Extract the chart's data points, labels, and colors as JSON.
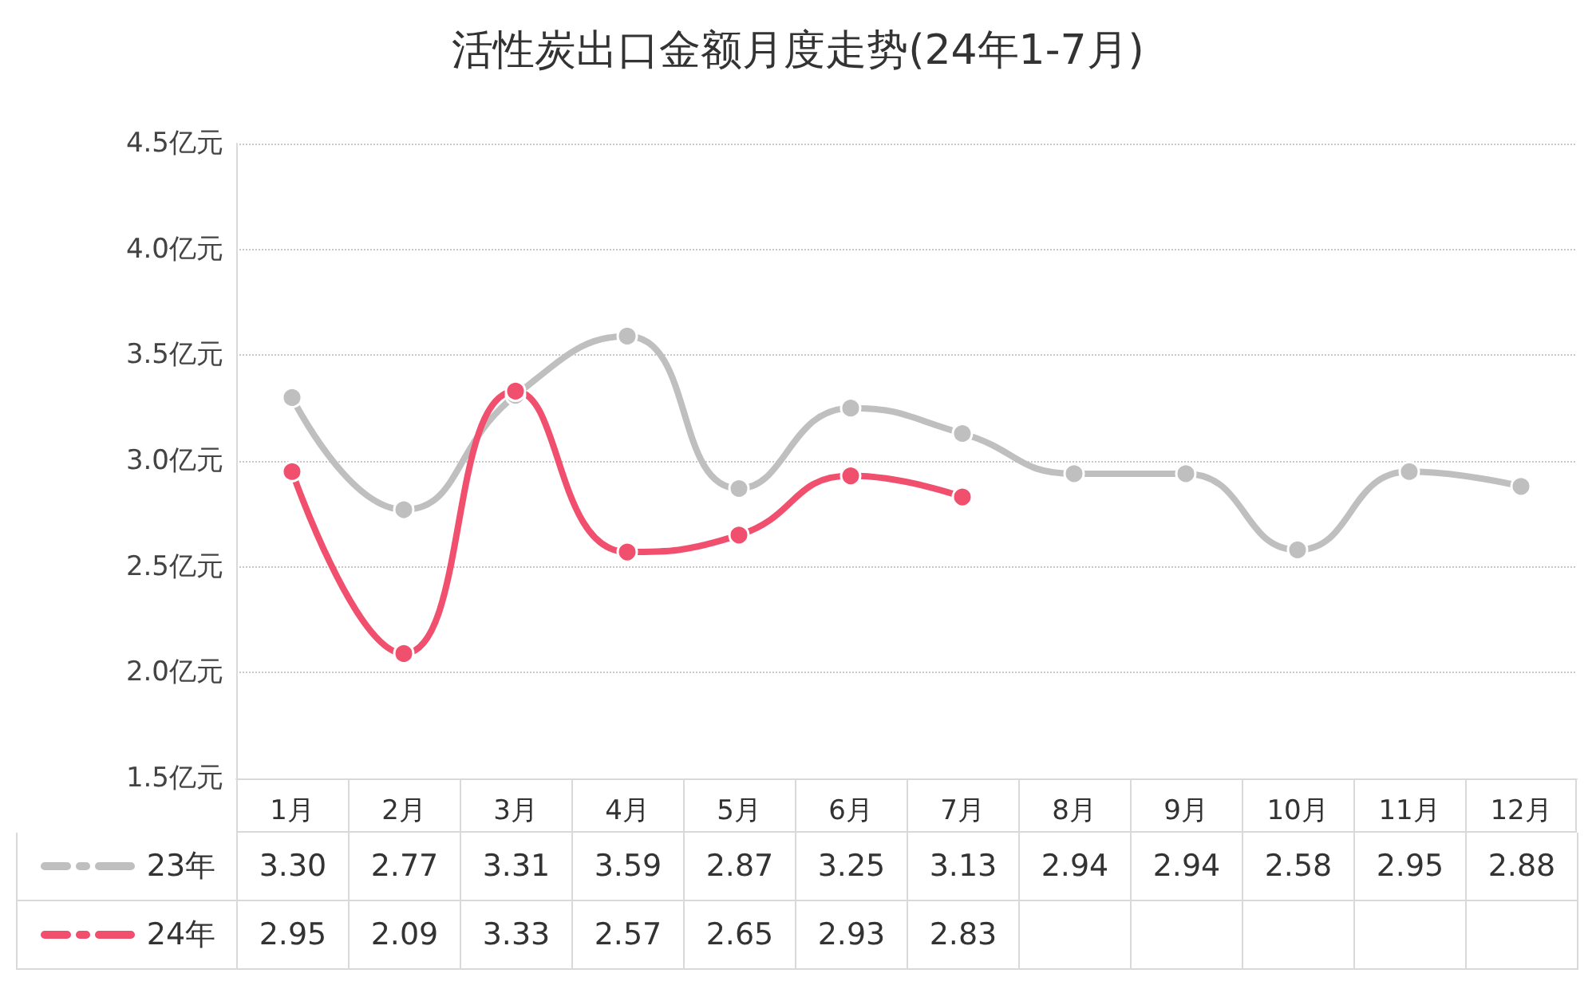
{
  "chart_data": {
    "type": "line",
    "title": "活性炭出口金额月度走势(24年1-7月)",
    "categories": [
      "1月",
      "2月",
      "3月",
      "4月",
      "5月",
      "6月",
      "7月",
      "8月",
      "9月",
      "10月",
      "11月",
      "12月"
    ],
    "series": [
      {
        "name": "23年",
        "color": "#bfbfbf",
        "values": [
          3.3,
          2.77,
          3.31,
          3.59,
          2.87,
          3.25,
          3.13,
          2.94,
          2.94,
          2.58,
          2.95,
          2.88
        ],
        "value_labels": [
          "3.30",
          "2.77",
          "3.31",
          "3.59",
          "2.87",
          "3.25",
          "3.13",
          "2.94",
          "2.94",
          "2.58",
          "2.95",
          "2.88"
        ]
      },
      {
        "name": "24年",
        "color": "#f0506e",
        "values": [
          2.95,
          2.09,
          3.33,
          2.57,
          2.65,
          2.93,
          2.83,
          null,
          null,
          null,
          null,
          null
        ],
        "value_labels": [
          "2.95",
          "2.09",
          "3.33",
          "2.57",
          "2.65",
          "2.93",
          "2.83",
          null,
          null,
          null,
          null,
          null
        ]
      }
    ],
    "ylim": [
      1.5,
      4.5
    ],
    "yticks": [
      {
        "value": 1.5,
        "label": "1.5亿元"
      },
      {
        "value": 2.0,
        "label": "2.0亿元"
      },
      {
        "value": 2.5,
        "label": "2.5亿元"
      },
      {
        "value": 3.0,
        "label": "3.0亿元"
      },
      {
        "value": 3.5,
        "label": "3.5亿元"
      },
      {
        "value": 4.0,
        "label": "4.0亿元"
      },
      {
        "value": 4.5,
        "label": "4.5亿元"
      }
    ],
    "grid": "y",
    "legend": "bottom",
    "marker": "circle",
    "line_style": "solid"
  }
}
